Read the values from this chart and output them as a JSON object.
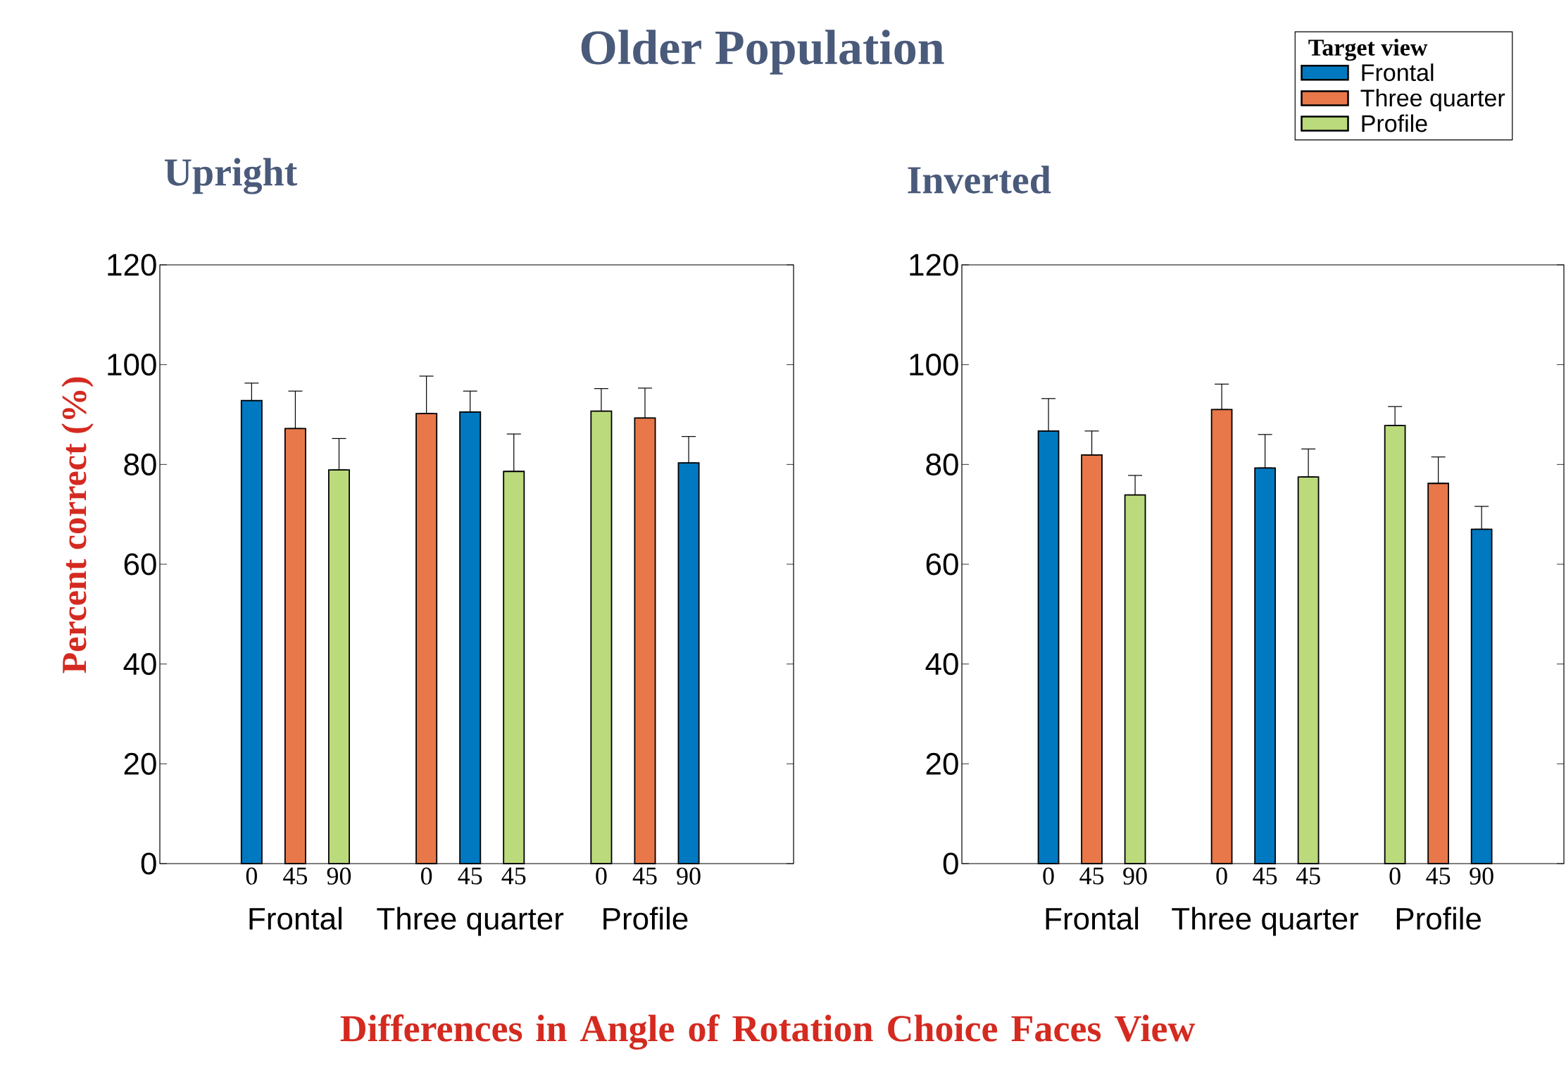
{
  "chart_data": [
    {
      "type": "bar",
      "title": "Older Population",
      "subtitle": "Upright",
      "ylabel": "Percent correct (%)",
      "xlabel": "Differences in Angle of Rotation Choice Faces View",
      "categories": [
        "0",
        "45",
        "90",
        null,
        "0",
        "45",
        "45",
        null,
        "0",
        "45",
        "90"
      ],
      "series": [
        {
          "color": "#0079c1",
          "values": [
            92.8,
            null,
            null,
            null,
            null,
            90.5,
            null,
            null,
            null,
            null,
            80.3
          ],
          "errors": [
            [
              92.8,
              96.3
            ],
            null,
            null,
            null,
            null,
            [
              90.5,
              94.7
            ],
            null,
            null,
            null,
            null,
            [
              80.3,
              85.6
            ]
          ]
        },
        {
          "color": "#e8784a",
          "values": [
            null,
            87.2,
            null,
            null,
            90.2,
            null,
            null,
            null,
            null,
            89.3,
            null
          ],
          "errors": [
            null,
            [
              87.2,
              94.7
            ],
            null,
            null,
            [
              90.2,
              97.7
            ],
            null,
            null,
            null,
            null,
            [
              89.3,
              95.3
            ],
            null
          ]
        },
        {
          "color": "#bada7c",
          "values": [
            null,
            null,
            78.9,
            null,
            null,
            null,
            78.6,
            null,
            90.7,
            null,
            null
          ],
          "errors": [
            null,
            null,
            [
              78.9,
              85.2
            ],
            null,
            null,
            null,
            [
              78.6,
              86.1
            ],
            null,
            [
              90.7,
              95.2
            ],
            null,
            null
          ]
        }
      ],
      "ylim": [
        0,
        120
      ],
      "yticks": [
        0,
        20,
        40,
        60,
        80,
        100,
        120
      ],
      "grid": false,
      "annotations": [
        "Frontal",
        "Three quarter",
        "Profile"
      ]
    },
    {
      "type": "bar",
      "subtitle": "Inverted",
      "legend_title": "Target view",
      "legend": "top right",
      "categories": [
        "0",
        "45",
        "90",
        null,
        "0",
        "45",
        "45",
        null,
        "0",
        "45",
        "90"
      ],
      "series": [
        {
          "name": "Frontal",
          "color": "#0079c1",
          "values": [
            86.7,
            null,
            null,
            null,
            null,
            79.3,
            null,
            null,
            null,
            null,
            67.0
          ],
          "errors": [
            [
              86.7,
              93.2
            ],
            null,
            null,
            null,
            null,
            [
              79.3,
              86.0
            ],
            null,
            null,
            null,
            null,
            [
              67.0,
              71.6
            ]
          ]
        },
        {
          "name": "Three quarter",
          "color": "#e8784a",
          "values": [
            null,
            81.9,
            null,
            null,
            91.0,
            null,
            null,
            null,
            null,
            76.2,
            null
          ],
          "errors": [
            null,
            [
              81.9,
              86.7
            ],
            null,
            null,
            [
              91.0,
              96.1
            ],
            null,
            null,
            null,
            null,
            [
              76.2,
              81.5
            ],
            null
          ]
        },
        {
          "name": "Profile",
          "color": "#bada7c",
          "values": [
            null,
            null,
            73.9,
            null,
            null,
            null,
            77.5,
            null,
            87.8,
            null,
            null
          ],
          "errors": [
            null,
            null,
            [
              73.9,
              77.8
            ],
            null,
            null,
            null,
            [
              77.5,
              83.1
            ],
            null,
            [
              87.8,
              91.6
            ],
            null,
            null
          ]
        }
      ],
      "ylim": [
        0,
        120
      ],
      "yticks": [
        0,
        20,
        40,
        60,
        80,
        100,
        120
      ],
      "grid": false,
      "annotations": [
        "Frontal",
        "Three quarter",
        "Profile"
      ]
    }
  ]
}
